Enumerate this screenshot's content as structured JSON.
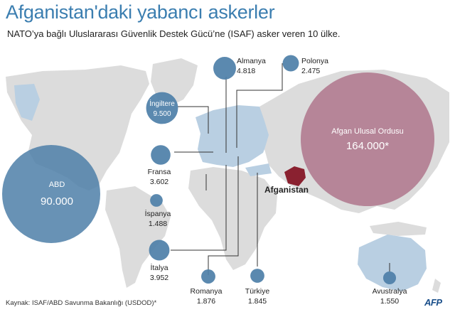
{
  "title": "Afganistan'daki yabancı askerler",
  "subtitle": "NATO’ya bağlı Uluslararası Güvenlik Destek Gücü’ne (ISAF) asker veren 10 ülke.",
  "source": "Kaynak:  ISAF/ABD Savunma Bakanlığı (USDOD)*",
  "logo": "AFP",
  "highlight_label": "Afganistan",
  "colors": {
    "land": "#dcdcdc",
    "land_highlight": "#b9cfe2",
    "bubble": "#4d7fa8",
    "bubble_afghan": "#a7647e",
    "afghanistan": "#8a2130",
    "title": "#3b7eb0"
  },
  "chart_data": {
    "type": "bubble-map",
    "unit": "asker",
    "points": [
      {
        "name": "ABD",
        "value": "90.000",
        "n": 90000
      },
      {
        "name": "Afgan Ulusal Ordusu",
        "value": "164.000*",
        "n": 164000
      },
      {
        "name": "İngiltere",
        "value": "9.500",
        "n": 9500
      },
      {
        "name": "Almanya",
        "value": "4.818",
        "n": 4818
      },
      {
        "name": "Polonya",
        "value": "2.475",
        "n": 2475
      },
      {
        "name": "Fransa",
        "value": "3.602",
        "n": 3602
      },
      {
        "name": "İspanya",
        "value": "1.488",
        "n": 1488
      },
      {
        "name": "İtalya",
        "value": "3.952",
        "n": 3952
      },
      {
        "name": "Romanya",
        "value": "1.876",
        "n": 1876
      },
      {
        "name": "Türkiye",
        "value": "1.845",
        "n": 1845
      },
      {
        "name": "Avustralya",
        "value": "1.550",
        "n": 1550
      }
    ]
  }
}
